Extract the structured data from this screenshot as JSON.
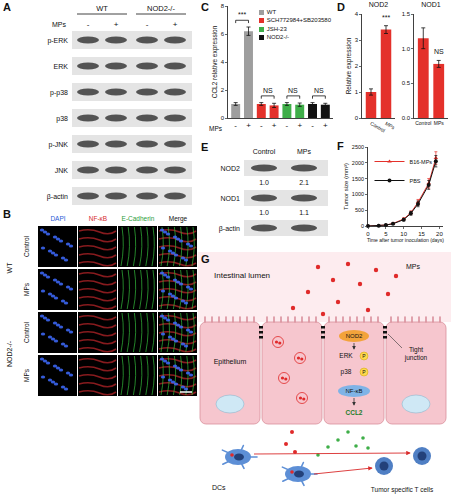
{
  "labels": [
    "A",
    "B",
    "C",
    "D",
    "E",
    "F",
    "G"
  ],
  "blot_A": {
    "groups": [
      "WT",
      "NOD2-/-"
    ],
    "treatment": "MPs",
    "lanes": [
      "-",
      "+",
      "-",
      "+"
    ],
    "rows": [
      "p-ERK",
      "ERK",
      "p-p38",
      "p38",
      "p-JNK",
      "JNK",
      "β-actin"
    ]
  },
  "images_B": {
    "columns": [
      "DAPI",
      "NF-κB",
      "E-Cadherin",
      "Merge"
    ],
    "groups": [
      {
        "name": "WT",
        "rows": [
          "Control",
          "MPs"
        ]
      },
      {
        "name": "NOD2-/-",
        "rows": [
          "Control",
          "MPs"
        ]
      }
    ]
  },
  "blot_E": {
    "lanes": [
      "Control",
      "MPs"
    ],
    "rows": [
      {
        "name": "NOD2",
        "quant": [
          "1.0",
          "2.1"
        ]
      },
      {
        "name": "NOD1",
        "quant": [
          "1.0",
          "1.1"
        ]
      },
      {
        "name": "β-actin"
      }
    ]
  },
  "diagram_G": {
    "lumen": "Intestinal lumen",
    "particles": "MPs",
    "epithelium": "Epithelium",
    "junction": "Tight junction",
    "receptor": "NOD2",
    "kinases": [
      {
        "name": "ERK",
        "mark": "P"
      },
      {
        "name": "p38",
        "mark": "P"
      }
    ],
    "factor": "NF-κB",
    "chemokine": "CCL2",
    "dc": "DCs",
    "tcells": "Tumor specific T cells"
  },
  "chart_data": [
    {
      "type": "bar",
      "ylabel": "CCL2 relative expression",
      "xlabel": "MPs",
      "categories": [
        "-",
        "+",
        "-",
        "+",
        "-",
        "+",
        "-",
        "+"
      ],
      "series": [
        {
          "name": "WT",
          "color": "#9e9e9e",
          "values": [
            1,
            6.2,
            null,
            null,
            null,
            null,
            null,
            null
          ],
          "errors": [
            0.1,
            0.3,
            null,
            null,
            null,
            null,
            null,
            null
          ]
        },
        {
          "name": "SCH772984+SB203580",
          "color": "#e4312b",
          "values": [
            null,
            null,
            1,
            0.9,
            null,
            null,
            null,
            null
          ],
          "errors": [
            null,
            null,
            0.1,
            0.15,
            null,
            null,
            null,
            null
          ]
        },
        {
          "name": "JSH-23",
          "color": "#3fae49",
          "values": [
            null,
            null,
            null,
            null,
            1,
            0.95,
            null,
            null
          ],
          "errors": [
            null,
            null,
            null,
            null,
            0.1,
            0.12,
            null,
            null
          ]
        },
        {
          "name": "NOD2-/-",
          "color": "#111111",
          "values": [
            null,
            null,
            null,
            null,
            null,
            null,
            1,
            0.95
          ],
          "errors": [
            null,
            null,
            null,
            null,
            null,
            null,
            0.1,
            0.1
          ]
        }
      ],
      "ylim": [
        0,
        8
      ],
      "yticks": [
        0,
        2,
        4,
        6,
        8
      ],
      "grid": false,
      "legend": "top right",
      "annotations": [
        {
          "text": "***",
          "from": 0,
          "to": 1
        },
        {
          "text": "NS",
          "from": 2,
          "to": 3
        },
        {
          "text": "NS",
          "from": 4,
          "to": 5
        },
        {
          "text": "NS",
          "from": 6,
          "to": 7
        }
      ]
    },
    {
      "type": "bar",
      "title": "NOD2",
      "ylabel": "Relative expression",
      "categories": [
        "Control",
        "MPs"
      ],
      "values": [
        1.0,
        3.4
      ],
      "errors": [
        0.12,
        0.15
      ],
      "color": "#e4312b",
      "ylim": [
        0,
        4
      ],
      "yticks": [
        0,
        1,
        2,
        3,
        4
      ],
      "grid": false,
      "annotations": [
        {
          "text": "***",
          "x": 1
        }
      ]
    },
    {
      "type": "bar",
      "title": "NOD1",
      "categories": [
        "Control",
        "MPs"
      ],
      "values": [
        1.15,
        0.78
      ],
      "errors": [
        0.15,
        0.05
      ],
      "color": "#e4312b",
      "ylim": [
        0,
        1.5
      ],
      "yticks": [
        {
          "value": 0,
          "label": "0.0"
        },
        0.5,
        {
          "value": 1,
          "label": "1.0"
        },
        1.5
      ],
      "grid": false,
      "annotations": [
        {
          "text": "NS",
          "x": 1
        }
      ]
    },
    {
      "type": "line",
      "xlabel": "Time after tumor inoculation (days)",
      "ylabel": "Tumor size (mm³)",
      "x": [
        0,
        3,
        5,
        7,
        10,
        12,
        14,
        17,
        19
      ],
      "series": [
        {
          "name": "B16-MPs",
          "color": "#e4312b",
          "marker": "triangle-up",
          "line_style": "solid",
          "values": [
            0,
            10,
            30,
            80,
            220,
            420,
            750,
            1350,
            2150
          ],
          "errors": [
            0,
            5,
            10,
            20,
            40,
            60,
            90,
            150,
            200
          ]
        },
        {
          "name": "PBS",
          "color": "#111111",
          "marker": "circle",
          "line_style": "solid",
          "values": [
            0,
            10,
            30,
            70,
            200,
            400,
            700,
            1300,
            2050
          ],
          "errors": [
            0,
            5,
            10,
            20,
            40,
            60,
            90,
            140,
            180
          ]
        }
      ],
      "xlim": [
        0,
        21
      ],
      "xticks": [
        0,
        5,
        10,
        15,
        20
      ],
      "ylim": [
        0,
        2500
      ],
      "yticks": [
        0,
        500,
        1000,
        1500,
        2000,
        2500
      ],
      "grid": false,
      "legend": "top left"
    }
  ]
}
